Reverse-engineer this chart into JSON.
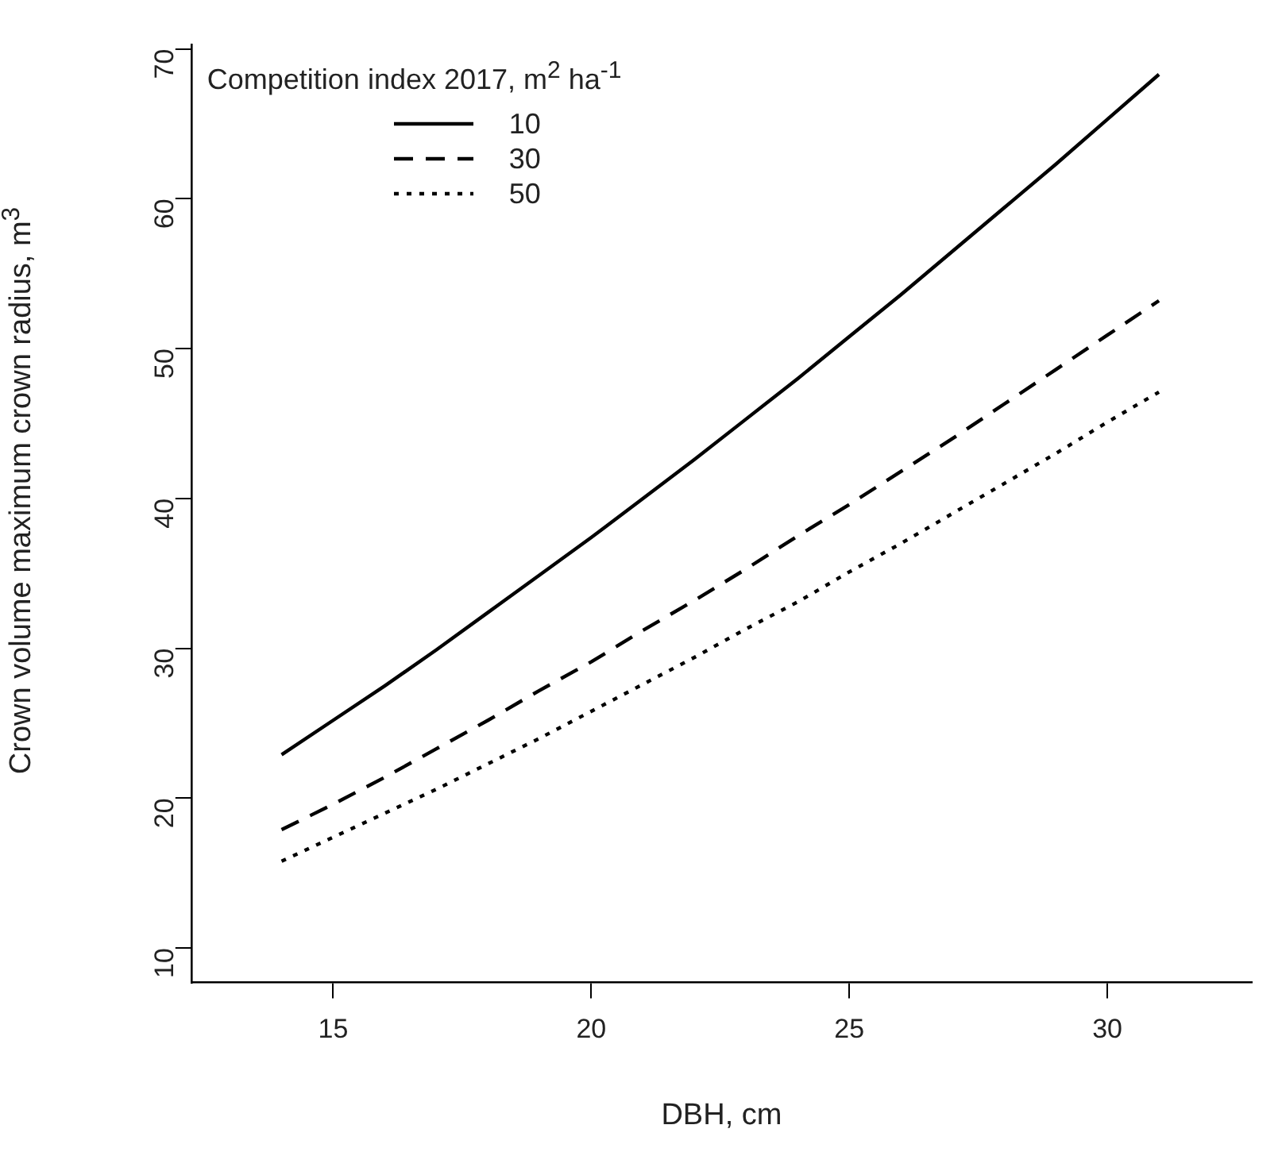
{
  "chart_data": {
    "type": "line",
    "xlabel": "DBH, cm",
    "ylabel": "Crown volume maximum crown radius, m$^{3}$",
    "legend_title": "Competition index 2017, m$^{2}$ ha$^{-1}$",
    "legend": "top left",
    "grid": false,
    "marker": "none",
    "x": [
      14,
      15,
      16,
      17,
      18,
      19,
      20,
      21,
      22,
      23,
      24,
      25,
      26,
      27,
      28,
      29,
      30,
      31
    ],
    "xlim": [
      12.25,
      32.8
    ],
    "xticks": [
      15,
      20,
      25,
      30
    ],
    "ylim": [
      7.7,
      70.3
    ],
    "yticks": [
      10,
      20,
      30,
      40,
      50,
      60,
      70
    ],
    "series": [
      {
        "name": "10",
        "color": "#000000",
        "line_style": "solid",
        "values": [
          22.9,
          25.2,
          27.5,
          29.9,
          32.4,
          34.9,
          37.4,
          40.0,
          42.6,
          45.3,
          48.0,
          50.8,
          53.6,
          56.5,
          59.4,
          62.3,
          65.3,
          68.3
        ]
      },
      {
        "name": "30",
        "color": "#000000",
        "line_style": "dashed",
        "values": [
          17.9,
          19.6,
          21.4,
          23.3,
          25.2,
          27.2,
          29.1,
          31.2,
          33.2,
          35.3,
          37.5,
          39.6,
          41.8,
          44.0,
          46.3,
          48.6,
          50.9,
          53.2
        ]
      },
      {
        "name": "50",
        "color": "#000000",
        "line_style": "dotted",
        "values": [
          15.8,
          17.4,
          19.0,
          20.6,
          22.3,
          24.0,
          25.8,
          27.6,
          29.4,
          31.3,
          33.1,
          35.1,
          37.0,
          39.0,
          41.0,
          43.0,
          45.1,
          47.1
        ]
      }
    ]
  }
}
